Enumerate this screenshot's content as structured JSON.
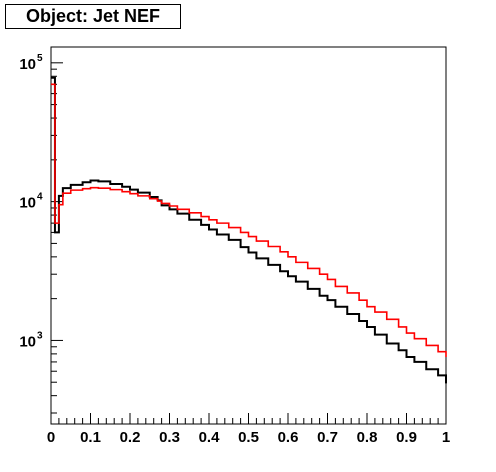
{
  "title": "Object: Jet NEF",
  "chart_data": {
    "type": "line",
    "subtype": "step-histogram",
    "title": "Object: Jet NEF",
    "xlabel": "",
    "ylabel": "",
    "xlim": [
      0,
      1
    ],
    "ylim": [
      250,
      130000
    ],
    "y_scale": "log",
    "grid": false,
    "x_tick_labels": [
      "0",
      "0.1",
      "0.2",
      "0.3",
      "0.4",
      "0.5",
      "0.6",
      "0.7",
      "0.8",
      "0.9",
      "1"
    ],
    "y_tick_labels": [
      {
        "base": "10",
        "exp": "3",
        "value": 1000
      },
      {
        "base": "10",
        "exp": "4",
        "value": 10000
      },
      {
        "base": "10",
        "exp": "5",
        "value": 100000
      }
    ],
    "x": [
      0.0,
      0.01,
      0.02,
      0.03,
      0.05,
      0.08,
      0.1,
      0.12,
      0.15,
      0.18,
      0.2,
      0.22,
      0.25,
      0.27,
      0.28,
      0.3,
      0.32,
      0.35,
      0.38,
      0.4,
      0.42,
      0.45,
      0.48,
      0.5,
      0.52,
      0.55,
      0.58,
      0.6,
      0.62,
      0.65,
      0.68,
      0.7,
      0.72,
      0.75,
      0.78,
      0.8,
      0.82,
      0.85,
      0.88,
      0.9,
      0.92,
      0.95,
      0.98,
      1.0
    ],
    "series": [
      {
        "color": "#000000",
        "values": [
          78000,
          6000,
          11000,
          12500,
          13200,
          13800,
          14200,
          14000,
          13400,
          12800,
          12200,
          11600,
          10800,
          10200,
          9400,
          8800,
          8200,
          7400,
          6800,
          6300,
          5800,
          5300,
          4700,
          4300,
          3900,
          3500,
          3150,
          2900,
          2650,
          2350,
          2100,
          1950,
          1750,
          1550,
          1380,
          1250,
          1100,
          950,
          850,
          760,
          700,
          620,
          560,
          490
        ]
      },
      {
        "color": "#ff0000",
        "values": [
          70000,
          7000,
          9500,
          11500,
          12100,
          12400,
          12600,
          12500,
          12200,
          11800,
          11400,
          11000,
          10500,
          10100,
          9700,
          9300,
          8800,
          8300,
          7800,
          7400,
          7000,
          6500,
          6000,
          5600,
          5200,
          4750,
          4350,
          4000,
          3650,
          3300,
          3000,
          2750,
          2450,
          2200,
          1950,
          1750,
          1600,
          1420,
          1250,
          1130,
          1030,
          920,
          830,
          760
        ]
      }
    ]
  }
}
